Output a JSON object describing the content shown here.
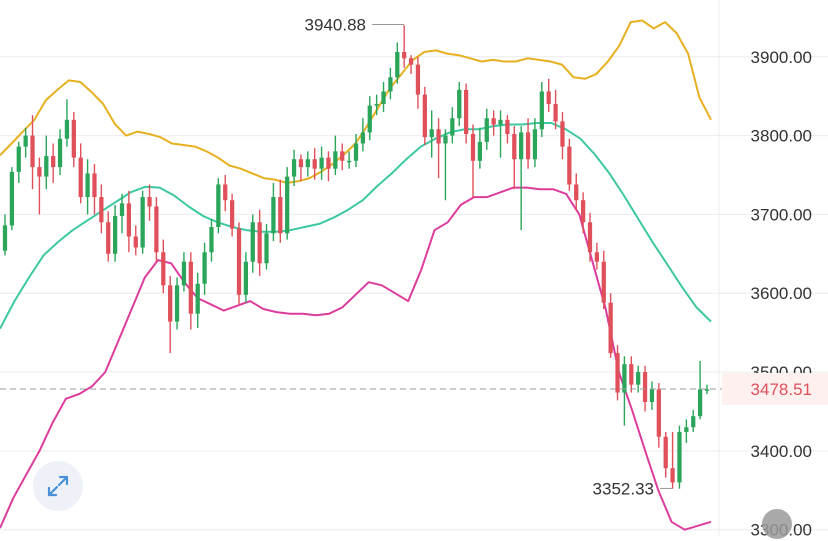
{
  "icons": {
    "expand": "expand-arrows-icon",
    "scroll": "scroll-handle-icon"
  },
  "chart_data": {
    "type": "candlestick",
    "y_ticks": [
      3300,
      3400,
      3500,
      3600,
      3700,
      3800,
      3900
    ],
    "y_tick_labels": [
      "3300.00",
      "3400.00",
      "3500.00",
      "3600.00",
      "3700.00",
      "3800.00",
      "3900.00"
    ],
    "ylim": [
      3292,
      3972
    ],
    "grid": true,
    "last_price": 3478.51,
    "last_price_label": "3478.51",
    "high_annotation": {
      "value": 3940.88,
      "label": "3940.88"
    },
    "low_annotation": {
      "value": 3352.33,
      "label": "3352.33"
    },
    "colors": {
      "up": "#2aa55a",
      "down": "#e0505a",
      "upper_band": "#e6b020",
      "middle_band": "#3cc8a0",
      "lower_band": "#dc3c9c",
      "grid": "#ececec"
    },
    "candles": [
      [
        3654,
        3686,
        3648,
        3700
      ],
      [
        3686,
        3754,
        3680,
        3760
      ],
      [
        3754,
        3786,
        3740,
        3792
      ],
      [
        3786,
        3800,
        3772,
        3810
      ],
      [
        3800,
        3760,
        3732,
        3826
      ],
      [
        3760,
        3748,
        3700,
        3772
      ],
      [
        3748,
        3774,
        3732,
        3800
      ],
      [
        3774,
        3760,
        3740,
        3790
      ],
      [
        3760,
        3796,
        3750,
        3808
      ],
      [
        3796,
        3820,
        3786,
        3846
      ],
      [
        3820,
        3772,
        3760,
        3830
      ],
      [
        3772,
        3722,
        3714,
        3790
      ],
      [
        3722,
        3752,
        3700,
        3770
      ],
      [
        3752,
        3722,
        3700,
        3764
      ],
      [
        3722,
        3690,
        3676,
        3738
      ],
      [
        3690,
        3650,
        3640,
        3704
      ],
      [
        3650,
        3698,
        3640,
        3712
      ],
      [
        3698,
        3714,
        3676,
        3726
      ],
      [
        3714,
        3672,
        3652,
        3730
      ],
      [
        3672,
        3658,
        3648,
        3686
      ],
      [
        3658,
        3722,
        3650,
        3730
      ],
      [
        3722,
        3710,
        3692,
        3738
      ],
      [
        3710,
        3652,
        3640,
        3722
      ],
      [
        3652,
        3610,
        3600,
        3668
      ],
      [
        3610,
        3564,
        3524,
        3622
      ],
      [
        3564,
        3610,
        3554,
        3620
      ],
      [
        3610,
        3640,
        3602,
        3652
      ],
      [
        3640,
        3574,
        3554,
        3652
      ],
      [
        3574,
        3612,
        3556,
        3626
      ],
      [
        3612,
        3652,
        3598,
        3664
      ],
      [
        3652,
        3684,
        3640,
        3694
      ],
      [
        3684,
        3738,
        3676,
        3746
      ],
      [
        3738,
        3718,
        3704,
        3750
      ],
      [
        3718,
        3682,
        3672,
        3726
      ],
      [
        3682,
        3598,
        3586,
        3690
      ],
      [
        3598,
        3640,
        3588,
        3652
      ],
      [
        3640,
        3690,
        3626,
        3700
      ],
      [
        3690,
        3638,
        3622,
        3706
      ],
      [
        3638,
        3676,
        3630,
        3688
      ],
      [
        3676,
        3722,
        3666,
        3740
      ],
      [
        3722,
        3676,
        3664,
        3744
      ],
      [
        3676,
        3748,
        3668,
        3760
      ],
      [
        3748,
        3770,
        3736,
        3782
      ],
      [
        3770,
        3760,
        3742,
        3776
      ],
      [
        3760,
        3770,
        3748,
        3780
      ],
      [
        3770,
        3758,
        3744,
        3784
      ],
      [
        3758,
        3772,
        3744,
        3786
      ],
      [
        3772,
        3758,
        3742,
        3780
      ],
      [
        3758,
        3780,
        3750,
        3800
      ],
      [
        3780,
        3768,
        3756,
        3790
      ],
      [
        3768,
        3768,
        3758,
        3780
      ],
      [
        3768,
        3790,
        3760,
        3802
      ],
      [
        3790,
        3804,
        3780,
        3822
      ],
      [
        3804,
        3838,
        3794,
        3850
      ],
      [
        3838,
        3840,
        3826,
        3852
      ],
      [
        3840,
        3856,
        3830,
        3868
      ],
      [
        3856,
        3874,
        3846,
        3886
      ],
      [
        3874,
        3906,
        3866,
        3918
      ],
      [
        3906,
        3898,
        3886,
        3940
      ],
      [
        3898,
        3890,
        3878,
        3902
      ],
      [
        3890,
        3852,
        3834,
        3900
      ],
      [
        3852,
        3798,
        3788,
        3862
      ],
      [
        3798,
        3808,
        3772,
        3832
      ],
      [
        3808,
        3790,
        3746,
        3822
      ],
      [
        3790,
        3800,
        3718,
        3808
      ],
      [
        3800,
        3822,
        3790,
        3836
      ],
      [
        3822,
        3858,
        3812,
        3868
      ],
      [
        3858,
        3802,
        3790,
        3866
      ],
      [
        3802,
        3768,
        3722,
        3814
      ],
      [
        3768,
        3792,
        3758,
        3810
      ],
      [
        3792,
        3822,
        3782,
        3834
      ],
      [
        3822,
        3814,
        3800,
        3832
      ],
      [
        3814,
        3820,
        3772,
        3832
      ],
      [
        3820,
        3802,
        3790,
        3826
      ],
      [
        3802,
        3770,
        3732,
        3812
      ],
      [
        3770,
        3804,
        3680,
        3812
      ],
      [
        3804,
        3770,
        3758,
        3822
      ],
      [
        3770,
        3808,
        3760,
        3822
      ],
      [
        3808,
        3856,
        3798,
        3868
      ],
      [
        3856,
        3840,
        3830,
        3872
      ],
      [
        3840,
        3818,
        3808,
        3858
      ],
      [
        3818,
        3786,
        3770,
        3830
      ],
      [
        3786,
        3738,
        3730,
        3796
      ],
      [
        3738,
        3718,
        3706,
        3752
      ],
      [
        3718,
        3690,
        3676,
        3728
      ],
      [
        3690,
        3652,
        3640,
        3702
      ],
      [
        3652,
        3640,
        3630,
        3664
      ],
      [
        3640,
        3588,
        3580,
        3654
      ],
      [
        3588,
        3524,
        3518,
        3600
      ],
      [
        3524,
        3474,
        3464,
        3534
      ],
      [
        3474,
        3510,
        3432,
        3520
      ],
      [
        3510,
        3484,
        3474,
        3520
      ],
      [
        3484,
        3500,
        3474,
        3508
      ],
      [
        3500,
        3462,
        3450,
        3508
      ],
      [
        3462,
        3478,
        3452,
        3488
      ],
      [
        3478,
        3418,
        3404,
        3486
      ],
      [
        3418,
        3378,
        3366,
        3424
      ],
      [
        3378,
        3360,
        3352,
        3424
      ],
      [
        3360,
        3424,
        3352,
        3432
      ],
      [
        3424,
        3430,
        3410,
        3440
      ],
      [
        3430,
        3444,
        3424,
        3452
      ],
      [
        3444,
        3478,
        3440,
        3514
      ],
      [
        3478,
        3478,
        3472,
        3484
      ]
    ],
    "upper_band": [
      3775,
      3790,
      3805,
      3820,
      3845,
      3858,
      3870,
      3868,
      3855,
      3840,
      3815,
      3800,
      3805,
      3802,
      3798,
      3790,
      3788,
      3786,
      3780,
      3772,
      3762,
      3758,
      3752,
      3746,
      3744,
      3740,
      3742,
      3746,
      3754,
      3764,
      3776,
      3790,
      3812,
      3836,
      3860,
      3878,
      3896,
      3906,
      3908,
      3904,
      3902,
      3898,
      3894,
      3896,
      3894,
      3894,
      3898,
      3896,
      3894,
      3890,
      3874,
      3872,
      3878,
      3894,
      3914,
      3944,
      3946,
      3936,
      3944,
      3930,
      3904,
      3848,
      3820
    ],
    "middle_band": [
      3555,
      3590,
      3620,
      3648,
      3665,
      3680,
      3692,
      3704,
      3716,
      3728,
      3735,
      3734,
      3724,
      3710,
      3698,
      3690,
      3684,
      3680,
      3678,
      3678,
      3680,
      3684,
      3688,
      3696,
      3706,
      3718,
      3736,
      3752,
      3770,
      3786,
      3796,
      3804,
      3808,
      3808,
      3812,
      3814,
      3814,
      3816,
      3816,
      3808,
      3796,
      3776,
      3752,
      3724,
      3694,
      3664,
      3636,
      3608,
      3582,
      3564
    ],
    "lower_band": [
      3302,
      3340,
      3370,
      3400,
      3436,
      3466,
      3472,
      3482,
      3500,
      3540,
      3580,
      3620,
      3642,
      3638,
      3614,
      3594,
      3586,
      3578,
      3584,
      3590,
      3580,
      3576,
      3574,
      3574,
      3572,
      3574,
      3582,
      3598,
      3614,
      3610,
      3600,
      3590,
      3630,
      3680,
      3690,
      3712,
      3722,
      3722,
      3728,
      3734,
      3734,
      3732,
      3732,
      3726,
      3700,
      3640,
      3580,
      3500,
      3452,
      3400,
      3350,
      3310,
      3300,
      3305,
      3310
    ]
  }
}
